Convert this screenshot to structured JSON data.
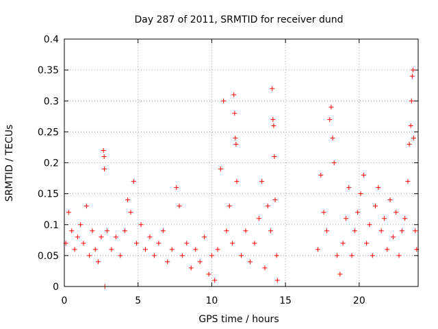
{
  "chart_data": {
    "type": "scatter",
    "title": "Day 287 of 2011, SRMTID for receiver dund",
    "xlabel": "GPS time / hours",
    "ylabel": "SRMTID / TECUs",
    "xlim": [
      0,
      24
    ],
    "ylim": [
      0,
      0.4
    ],
    "x_ticks": [
      0,
      5,
      10,
      15,
      20
    ],
    "x_tick_labels": [
      "0",
      "5",
      "10",
      "15",
      "20"
    ],
    "y_ticks": [
      0,
      0.05,
      0.1,
      0.15,
      0.2,
      0.25,
      0.3,
      0.35,
      0.4
    ],
    "y_tick_labels": [
      "0",
      "0.05",
      "0.1",
      "0.15",
      "0.2",
      "0.25",
      "0.3",
      "0.35",
      "0.4"
    ],
    "grid": true,
    "marker": "+",
    "marker_color": "#ff0000",
    "series": [
      {
        "name": "SRMTID",
        "points": [
          [
            0.1,
            0.07
          ],
          [
            0.3,
            0.12
          ],
          [
            0.5,
            0.09
          ],
          [
            0.7,
            0.06
          ],
          [
            0.9,
            0.08
          ],
          [
            1.1,
            0.1
          ],
          [
            1.3,
            0.07
          ],
          [
            1.5,
            0.13
          ],
          [
            1.7,
            0.05
          ],
          [
            1.9,
            0.09
          ],
          [
            2.1,
            0.06
          ],
          [
            2.3,
            0.04
          ],
          [
            2.5,
            0.08
          ],
          [
            2.65,
            0.22
          ],
          [
            2.7,
            0.21
          ],
          [
            2.72,
            0.19
          ],
          [
            2.75,
            0.0
          ],
          [
            2.9,
            0.09
          ],
          [
            3.2,
            0.06
          ],
          [
            3.5,
            0.08
          ],
          [
            3.8,
            0.05
          ],
          [
            4.1,
            0.09
          ],
          [
            4.3,
            0.14
          ],
          [
            4.5,
            0.12
          ],
          [
            4.7,
            0.17
          ],
          [
            4.9,
            0.07
          ],
          [
            5.2,
            0.1
          ],
          [
            5.5,
            0.06
          ],
          [
            5.8,
            0.08
          ],
          [
            6.1,
            0.05
          ],
          [
            6.4,
            0.07
          ],
          [
            6.7,
            0.09
          ],
          [
            7.0,
            0.04
          ],
          [
            7.3,
            0.06
          ],
          [
            7.6,
            0.16
          ],
          [
            7.8,
            0.13
          ],
          [
            8.0,
            0.05
          ],
          [
            8.3,
            0.07
          ],
          [
            8.6,
            0.03
          ],
          [
            8.9,
            0.06
          ],
          [
            9.2,
            0.04
          ],
          [
            9.5,
            0.08
          ],
          [
            9.8,
            0.02
          ],
          [
            10.0,
            0.05
          ],
          [
            10.2,
            0.01
          ],
          [
            10.4,
            0.06
          ],
          [
            10.6,
            0.19
          ],
          [
            10.8,
            0.3
          ],
          [
            11.0,
            0.09
          ],
          [
            11.2,
            0.13
          ],
          [
            11.4,
            0.07
          ],
          [
            11.5,
            0.31
          ],
          [
            11.55,
            0.28
          ],
          [
            11.6,
            0.24
          ],
          [
            11.65,
            0.23
          ],
          [
            11.7,
            0.17
          ],
          [
            12.0,
            0.05
          ],
          [
            12.3,
            0.09
          ],
          [
            12.6,
            0.04
          ],
          [
            12.9,
            0.07
          ],
          [
            13.2,
            0.11
          ],
          [
            13.4,
            0.17
          ],
          [
            13.6,
            0.03
          ],
          [
            13.8,
            0.13
          ],
          [
            14.0,
            0.09
          ],
          [
            14.1,
            0.32
          ],
          [
            14.15,
            0.27
          ],
          [
            14.2,
            0.26
          ],
          [
            14.25,
            0.21
          ],
          [
            14.3,
            0.14
          ],
          [
            14.4,
            0.05
          ],
          [
            14.45,
            0.01
          ],
          [
            17.2,
            0.06
          ],
          [
            17.4,
            0.18
          ],
          [
            17.6,
            0.12
          ],
          [
            17.8,
            0.09
          ],
          [
            18.0,
            0.27
          ],
          [
            18.1,
            0.29
          ],
          [
            18.2,
            0.24
          ],
          [
            18.3,
            0.2
          ],
          [
            18.5,
            0.05
          ],
          [
            18.7,
            0.02
          ],
          [
            18.9,
            0.07
          ],
          [
            19.1,
            0.11
          ],
          [
            19.3,
            0.16
          ],
          [
            19.5,
            0.05
          ],
          [
            19.7,
            0.09
          ],
          [
            19.9,
            0.12
          ],
          [
            20.1,
            0.15
          ],
          [
            20.3,
            0.18
          ],
          [
            20.5,
            0.07
          ],
          [
            20.7,
            0.1
          ],
          [
            20.9,
            0.05
          ],
          [
            21.1,
            0.13
          ],
          [
            21.3,
            0.16
          ],
          [
            21.5,
            0.09
          ],
          [
            21.7,
            0.11
          ],
          [
            21.9,
            0.06
          ],
          [
            22.1,
            0.14
          ],
          [
            22.3,
            0.08
          ],
          [
            22.5,
            0.12
          ],
          [
            22.7,
            0.05
          ],
          [
            22.9,
            0.09
          ],
          [
            23.1,
            0.11
          ],
          [
            23.3,
            0.17
          ],
          [
            23.4,
            0.23
          ],
          [
            23.5,
            0.26
          ],
          [
            23.55,
            0.3
          ],
          [
            23.6,
            0.34
          ],
          [
            23.65,
            0.35
          ],
          [
            23.7,
            0.24
          ],
          [
            23.8,
            0.09
          ],
          [
            23.9,
            0.06
          ]
        ]
      }
    ]
  }
}
